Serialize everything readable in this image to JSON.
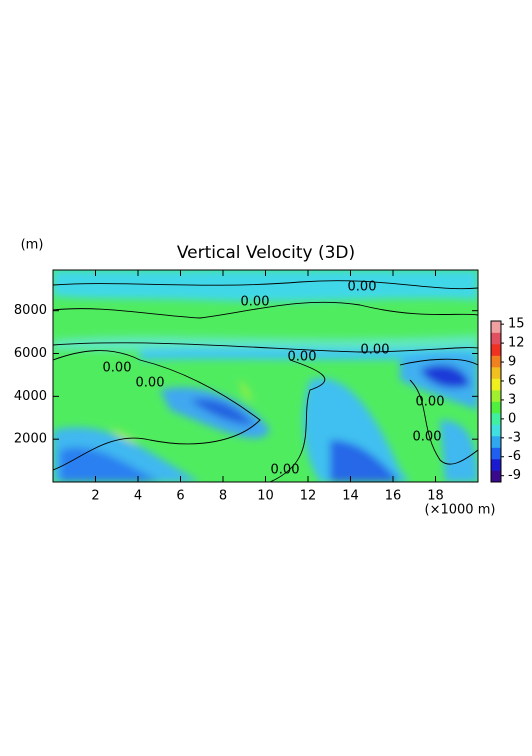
{
  "chart_data": {
    "type": "contour",
    "title": "Vertical Velocity (3D)",
    "y_label": "(m)",
    "x_label": "(×1000 m)",
    "xlim": [
      0,
      20
    ],
    "xticks": [
      2,
      4,
      6,
      8,
      10,
      12,
      14,
      16,
      18
    ],
    "ylim": [
      0,
      9900
    ],
    "yticks": [
      2000,
      4000,
      6000,
      8000
    ],
    "clim": [
      -10,
      15.5
    ],
    "cticks": [
      15,
      12,
      9,
      6,
      3,
      0,
      -3,
      -6,
      -9
    ],
    "colorscale": [
      "#3a0a8c",
      "#1a1ad0",
      "#2060f0",
      "#30a8f0",
      "#40e0e0",
      "#40f0a0",
      "#50f040",
      "#a0f030",
      "#f0f020",
      "#f0c020",
      "#f08020",
      "#f03020",
      "#e05060",
      "#f0a0a0"
    ],
    "contour_labels": [
      "0.00",
      "0.00",
      "0.00",
      "0.00",
      "0.00",
      "0.00",
      "0.00",
      "0.00",
      "0.00"
    ]
  }
}
